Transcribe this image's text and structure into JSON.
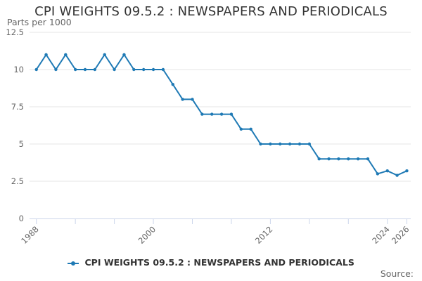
{
  "colors": {
    "series": "#1f7ab5",
    "grid": "#e6e6e6",
    "axis": "#ccd6eb",
    "text": "#333333",
    "muted": "#666666"
  },
  "chart_data": {
    "type": "line",
    "title": "CPI WEIGHTS 09.5.2 : NEWSPAPERS AND PERIODICALS",
    "ylabel": "Parts per 1000",
    "ylim": [
      0,
      12.5
    ],
    "xlim": [
      1987.3,
      2026.4
    ],
    "y_ticks": [
      0,
      2.5,
      5,
      7.5,
      10,
      12.5
    ],
    "y_tick_labels": [
      "0",
      "2.5",
      "5",
      "7.5",
      "10",
      "12.5"
    ],
    "x_ticks": [
      1988,
      2000,
      2012,
      2024,
      2026
    ],
    "x_tick_labels": [
      "1988",
      "2000",
      "2012",
      "2024",
      "2026"
    ],
    "grid": true,
    "legend": "bottom-center",
    "series": [
      {
        "name": "CPI WEIGHTS 09.5.2 : NEWSPAPERS AND PERIODICALS",
        "x": [
          1988,
          1989,
          1990,
          1991,
          1992,
          1993,
          1994,
          1995,
          1996,
          1997,
          1998,
          1999,
          2000,
          2001,
          2002,
          2003,
          2004,
          2005,
          2006,
          2007,
          2008,
          2009,
          2010,
          2011,
          2012,
          2013,
          2014,
          2015,
          2016,
          2017,
          2018,
          2019,
          2020,
          2021,
          2022,
          2023,
          2024,
          2025,
          2026
        ],
        "values": [
          10,
          11,
          10,
          11,
          10,
          10,
          10,
          11,
          10,
          11,
          10,
          10,
          10,
          10,
          9,
          8,
          8,
          7,
          7,
          7,
          7,
          6,
          6,
          5,
          5,
          5,
          5,
          5,
          5,
          4,
          4,
          4,
          4,
          4,
          4,
          3,
          3.2,
          2.9,
          3.2
        ]
      }
    ]
  },
  "legend_label": "CPI WEIGHTS 09.5.2 : NEWSPAPERS AND PERIODICALS",
  "source_label": "Source:"
}
